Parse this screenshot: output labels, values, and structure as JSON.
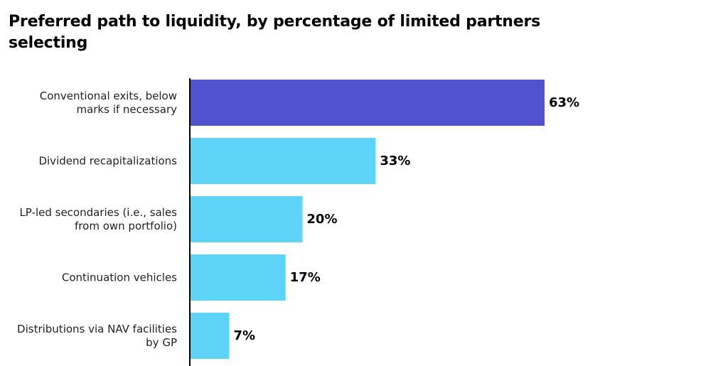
{
  "chart_data": {
    "type": "bar",
    "orientation": "horizontal",
    "title": "Preferred path to liquidity, by percentage of limited partners selecting",
    "categories": [
      [
        "Conventional exits, below",
        "marks if necessary"
      ],
      [
        "Dividend recapitalizations"
      ],
      [
        "LP-led secondaries (i.e., sales",
        "from own portfolio)"
      ],
      [
        "Continuation vehicles"
      ],
      [
        "Distributions via NAV facilities",
        "by GP"
      ]
    ],
    "values": [
      63,
      33,
      20,
      17,
      7
    ],
    "value_labels": [
      "63%",
      "33%",
      "20%",
      "17%",
      "7%"
    ],
    "colors": [
      "#5152cf",
      "#5fd3f7",
      "#5fd3f7",
      "#5fd3f7",
      "#5fd3f7"
    ],
    "xlim": [
      0,
      63
    ],
    "grid": false,
    "legend": "none"
  }
}
